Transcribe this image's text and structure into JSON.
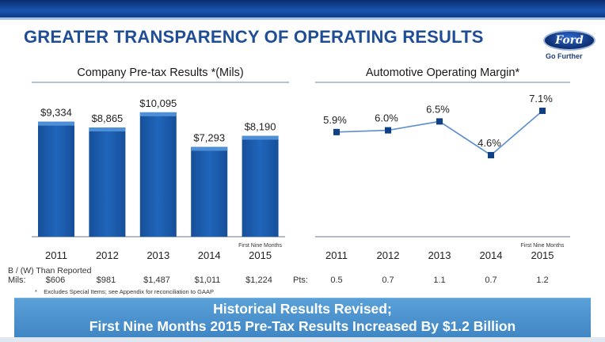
{
  "slide": {
    "title": "GREATER TRANSPARENCY OF OPERATING RESULTS",
    "logo_text": "Ford",
    "tagline": "Go Further"
  },
  "chart_data": [
    {
      "type": "bar",
      "title": "Company Pre-tax Results *(Mils)",
      "categories": [
        "2011",
        "2012",
        "2013",
        "2014",
        "2015"
      ],
      "values": [
        9334,
        8865,
        10095,
        7293,
        8190
      ],
      "value_labels": [
        "$9,334",
        "$8,865",
        "$10,095",
        "$7,293",
        "$8,190"
      ],
      "note_2015": "First Nine Months",
      "ylim": [
        0,
        10600
      ],
      "bar_color": "#1d5fb0",
      "bar_top_color": "#4f8fd6"
    },
    {
      "type": "line",
      "title": "Automotive Operating Margin*",
      "categories": [
        "2011",
        "2012",
        "2013",
        "2014",
        "2015"
      ],
      "values": [
        5.9,
        6.0,
        6.5,
        4.6,
        7.1
      ],
      "value_labels": [
        "5.9%",
        "6.0%",
        "6.5%",
        "4.6%",
        "7.1%"
      ],
      "note_2015": "First Nine Months",
      "ylim": [
        0,
        7.5
      ],
      "line_color": "#5b8fcf",
      "marker_color": "#0f3f84"
    }
  ],
  "adjustments": {
    "header": "B / (W) Than Reported",
    "mils_label": "Mils:",
    "mils_values": [
      "$606",
      "$981",
      "$1,487",
      "$1,011",
      "$1,224"
    ],
    "pts_label": "Pts:",
    "pts_values": [
      "0.5",
      "0.7",
      "1.1",
      "0.7",
      "1.2"
    ]
  },
  "footnote": {
    "marker": "*",
    "text": "Excludes Special Items; see Appendix for reconciliation to GAAP"
  },
  "banner": {
    "line1": "Historical Results Revised;",
    "line2": "First Nine Months 2015 Pre-Tax Results Increased By $1.2 Billion"
  }
}
